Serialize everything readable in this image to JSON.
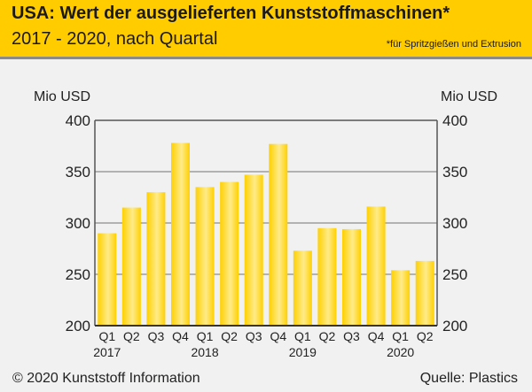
{
  "header": {
    "title": "USA: Wert der ausgelieferten Kunststoffmaschinen*",
    "subtitle": "2017 - 2020, nach Quartal",
    "footnote": "*für Spritzgießen und Extrusion"
  },
  "footer": {
    "copyright": "© 2020 Kunststoff Information",
    "source": "Quelle: Plastics"
  },
  "colors": {
    "bar": "#ffd21a",
    "header": "#ffcc00"
  },
  "chart_data": {
    "type": "bar",
    "title": "USA: Wert der ausgelieferten Kunststoffmaschinen*",
    "ylabel": "Mio USD",
    "ylabel_right": "Mio USD",
    "ylim": [
      200,
      400
    ],
    "yticks": [
      200,
      250,
      300,
      350,
      400
    ],
    "grid": true,
    "categories": [
      "Q1",
      "Q2",
      "Q3",
      "Q4",
      "Q1",
      "Q2",
      "Q3",
      "Q4",
      "Q1",
      "Q2",
      "Q3",
      "Q4",
      "Q1",
      "Q2"
    ],
    "years": [
      {
        "label": "2017",
        "index": 0
      },
      {
        "label": "2018",
        "index": 4
      },
      {
        "label": "2019",
        "index": 8
      },
      {
        "label": "2020",
        "index": 12
      }
    ],
    "values": [
      290,
      315,
      330,
      378,
      335,
      340,
      347,
      377,
      273,
      295,
      294,
      316,
      254,
      263
    ]
  }
}
